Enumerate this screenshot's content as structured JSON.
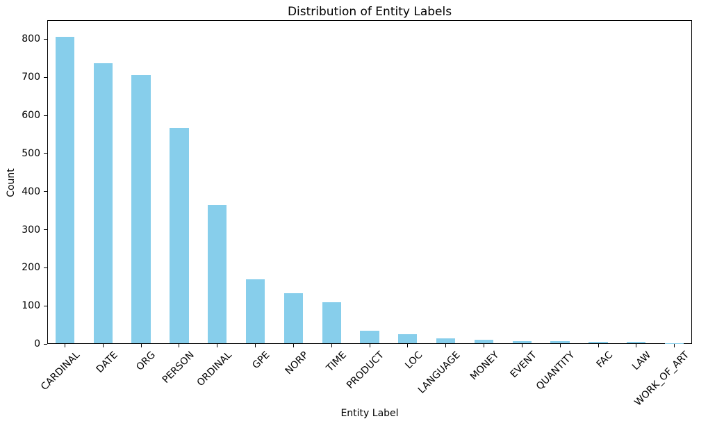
{
  "chart_data": {
    "type": "bar",
    "title": "Distribution of Entity Labels",
    "xlabel": "Entity Label",
    "ylabel": "Count",
    "categories": [
      "CARDINAL",
      "DATE",
      "ORG",
      "PERSON",
      "ORDINAL",
      "GPE",
      "NORP",
      "TIME",
      "PRODUCT",
      "LOC",
      "LANGUAGE",
      "MONEY",
      "EVENT",
      "QUANTITY",
      "FAC",
      "LAW",
      "WORK_OF_ART"
    ],
    "values": [
      805,
      735,
      704,
      566,
      363,
      168,
      131,
      107,
      33,
      24,
      12,
      10,
      6,
      6,
      3,
      3,
      1
    ],
    "yticks": [
      0,
      100,
      200,
      300,
      400,
      500,
      600,
      700,
      800
    ],
    "ylim": [
      0,
      850
    ],
    "bar_color": "#87CEEB",
    "axis_color": "#000000",
    "background_color": "#ffffff",
    "grid": false,
    "legend": "none",
    "x_tick_rotation": 45
  }
}
